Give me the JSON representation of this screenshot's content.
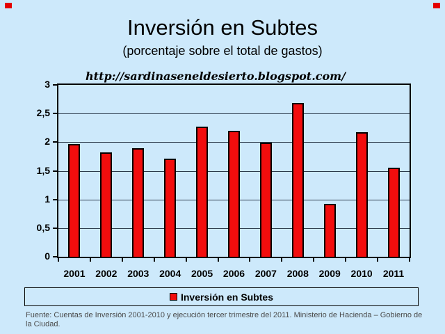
{
  "header": {
    "watermark": "http://sardinaseneldesierto.blogspot.com/"
  },
  "chart_data": {
    "type": "bar",
    "title": "Inversión en Subtes",
    "subtitle": "(porcentaje sobre el total de gastos)",
    "categories": [
      "2001",
      "2002",
      "2003",
      "2004",
      "2005",
      "2006",
      "2007",
      "2008",
      "2009",
      "2010",
      "2011"
    ],
    "series": [
      {
        "name": "Inversión en Subtes",
        "values": [
          1.97,
          1.82,
          1.9,
          1.71,
          2.27,
          2.2,
          1.99,
          2.68,
          0.92,
          2.18,
          1.55
        ]
      }
    ],
    "xlabel": "",
    "ylabel": "",
    "ylim": [
      0,
      3
    ],
    "yticks": [
      [
        0,
        "0"
      ],
      [
        0.5,
        "0,5"
      ],
      [
        1,
        "1"
      ],
      [
        1.5,
        "1,5"
      ],
      [
        2,
        "2"
      ],
      [
        2.5,
        "2,5"
      ],
      [
        3,
        "3"
      ]
    ],
    "grid": true,
    "legend": {
      "position": "bottom",
      "label": "Inversión en Subtes"
    },
    "colors": {
      "background": "#cde9fb",
      "bar": "#f20d0d",
      "bar_border": "#000000",
      "gridline": "#2b3a4a",
      "source_text": "#4a4a4a"
    }
  },
  "footer": {
    "text": "Fuente: Cuentas de Inversión 2001-2010 y ejecución tercer trimestre del 2011. Ministerio de Hacienda – Gobierno de la Ciudad."
  }
}
